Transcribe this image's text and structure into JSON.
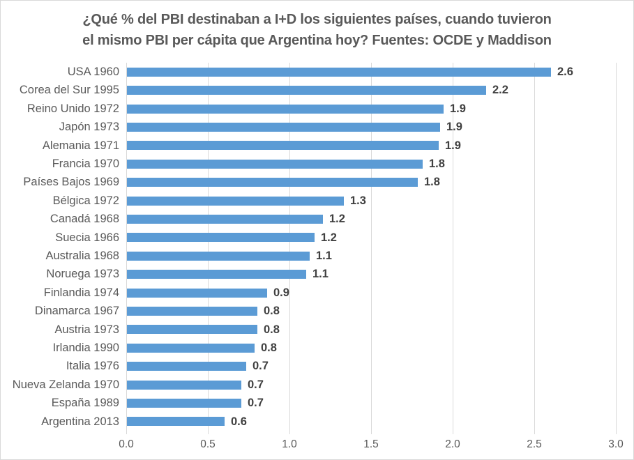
{
  "chart_data": {
    "type": "bar",
    "orientation": "horizontal",
    "title_line1": "¿Qué % del PBI destinaban a I+D los siguientes países, cuando tuvieron",
    "title_line2": "el mismo PBI per cápita que Argentina hoy? Fuentes: OCDE y Maddison",
    "categories": [
      "USA 1960",
      "Corea del Sur 1995",
      "Reino Unido 1972",
      "Japón 1973",
      "Alemania 1971",
      "Francia 1970",
      "Países Bajos 1969",
      "Bélgica 1972",
      "Canadá 1968",
      "Suecia 1966",
      "Australia 1968",
      "Noruega 1973",
      "Finlandia 1974",
      "Dinamarca 1967",
      "Austria 1973",
      "Irlandia 1990",
      "Italia 1976",
      "Nueva Zelanda 1970",
      "España 1989",
      "Argentina 2013"
    ],
    "values": [
      2.6,
      2.2,
      1.9,
      1.9,
      1.9,
      1.8,
      1.8,
      1.3,
      1.2,
      1.2,
      1.1,
      1.1,
      0.9,
      0.8,
      0.8,
      0.8,
      0.7,
      0.7,
      0.7,
      0.6
    ],
    "value_labels": [
      "2.6",
      "2.2",
      "1.9",
      "1.9",
      "1.9",
      "1.8",
      "1.8",
      "1.3",
      "1.2",
      "1.2",
      "1.1",
      "1.1",
      "0.9",
      "0.8",
      "0.8",
      "0.8",
      "0.7",
      "0.7",
      "0.7",
      "0.6"
    ],
    "bar_lengths_est": [
      2.6,
      2.2,
      1.94,
      1.92,
      1.91,
      1.81,
      1.78,
      1.33,
      1.2,
      1.15,
      1.12,
      1.1,
      0.86,
      0.8,
      0.8,
      0.78,
      0.73,
      0.7,
      0.7,
      0.6
    ],
    "xlim": [
      0,
      3
    ],
    "x_ticks": [
      "0.0",
      "0.5",
      "1.0",
      "1.5",
      "2.0",
      "2.5",
      "3.0"
    ],
    "grid": true,
    "legend": false,
    "colors": {
      "bar": "#5b9bd5",
      "title": "#595959",
      "category_label": "#595959",
      "data_label": "#404040",
      "axis_label": "#595959",
      "gridline": "#d9d9d9",
      "border": "#d9d9d9"
    }
  }
}
